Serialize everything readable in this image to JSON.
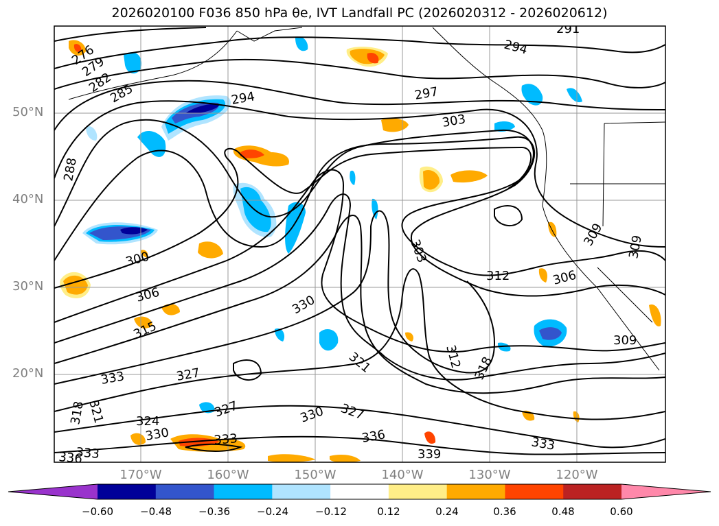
{
  "title": "2026020100 F036 850 hPa θe, IVT Landfall PC (2026020312 - 2026020612)",
  "lat_labels": [
    "50°N",
    "40°N",
    "30°N",
    "20°N"
  ],
  "lon_labels": [
    "170°W",
    "160°W",
    "150°W",
    "140°W",
    "130°W",
    "120°W"
  ],
  "colorbar": {
    "colors": [
      "#9933cc",
      "#000099",
      "#3355cc",
      "#00bbff",
      "#b0e4ff",
      "#ffffff",
      "#ffee88",
      "#ffaa00",
      "#ff4400",
      "#bb2222",
      "#ff88aa"
    ],
    "ticks": [
      "−0.60",
      "−0.48",
      "−0.36",
      "−0.24",
      "−0.12",
      "0.12",
      "0.24",
      "0.36",
      "0.48",
      "0.60"
    ]
  },
  "contour_labels": [
    "276",
    "279",
    "282",
    "285",
    "288",
    "291",
    "294",
    "294",
    "297",
    "300",
    "303",
    "303",
    "306",
    "306",
    "309",
    "309",
    "309",
    "312",
    "312",
    "315",
    "318",
    "318",
    "321",
    "321",
    "324",
    "327",
    "327",
    "327",
    "330",
    "330",
    "330",
    "333",
    "333",
    "333",
    "333",
    "336",
    "336",
    "339"
  ]
}
